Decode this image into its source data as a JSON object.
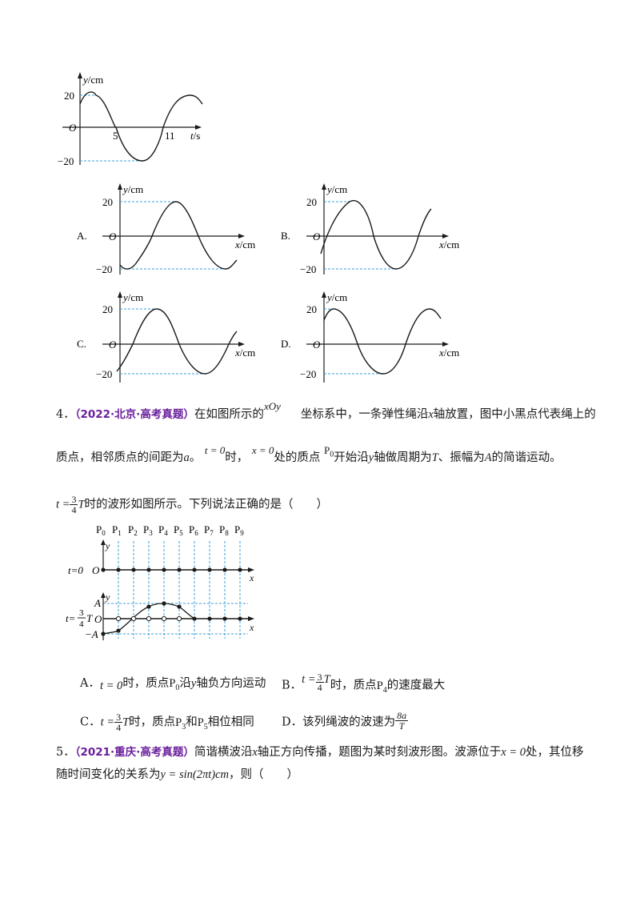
{
  "top_graph": {
    "y_label": "y/cm",
    "x_label": "t/s",
    "origin": "O",
    "y_top": "20",
    "y_bottom": "−20",
    "tick_5": "5",
    "tick_11": "11"
  },
  "options_graphs": [
    {
      "letter": "A.",
      "y_label": "y/cm",
      "x_label": "x/cm",
      "origin": "O",
      "y_top": "20",
      "y_bottom": "−20"
    },
    {
      "letter": "B.",
      "y_label": "y/cm",
      "x_label": "x/cm",
      "origin": "O",
      "y_top": "20",
      "y_bottom": "−20"
    },
    {
      "letter": "C.",
      "y_label": "y/cm",
      "x_label": "x/cm",
      "origin": "O",
      "y_top": "20",
      "y_bottom": "−20"
    },
    {
      "letter": "D.",
      "y_label": "y/cm",
      "x_label": "x/cm",
      "origin": "O",
      "y_top": "20",
      "y_bottom": "−20"
    }
  ],
  "q4": {
    "num": "4．",
    "tag": "（2022·北京·高考真题）",
    "t1": "在如图所示的",
    "xOy": "xOy",
    "t2": "坐标系中，一条弹性绳沿",
    "x": "x",
    "t3": "轴放置，图中小黑点代表绳上的",
    "l2_a": "质点，相邻质点的间距为",
    "a": "a",
    "l2_b": "。",
    "t0": "t = 0",
    "l2_c": "时，",
    "x0": "x = 0",
    "l2_d": "处的质点",
    "P0": "P",
    "P0sub": "0",
    "l2_e": "开始沿",
    "y": "y",
    "l2_f": "轴做周期为",
    "T": "T",
    "l2_g": "、振幅为",
    "A": "A",
    "l2_h": "的简谐运动。",
    "l3_t": "t =",
    "frac_num": "3",
    "frac_den": "4",
    "l3_T": "T",
    "l3_rest": "时的波形如图所示。下列说法正确的是（　　）"
  },
  "wave_fig": {
    "points": [
      "P",
      "P",
      "P",
      "P",
      "P",
      "P",
      "P",
      "P",
      "P",
      "P"
    ],
    "subs": [
      "0",
      "1",
      "2",
      "3",
      "4",
      "5",
      "6",
      "7",
      "8",
      "9"
    ],
    "y": "y",
    "x": "x",
    "O": "O",
    "row1_label": "t=0",
    "row2_t": "t=",
    "row2_num": "3",
    "row2_den": "4",
    "row2_T": "T",
    "A": "A",
    "negA": "−A"
  },
  "q4_options": {
    "A_letter": "A．",
    "A_t": "t = 0",
    "A_1": "时，质点",
    "A_P": "P",
    "A_Psub": "0",
    "A_2": "沿",
    "A_y": "y",
    "A_3": "轴负方向运动",
    "B_letter": "B．",
    "B_t": "t =",
    "B_num": "3",
    "B_den": "4",
    "B_T": "T",
    "B_1": "时，质点",
    "B_P": "P",
    "B_Psub": "4",
    "B_2": "的速度最大",
    "C_letter": "C．",
    "C_t": "t =",
    "C_num": "3",
    "C_den": "4",
    "C_T": "T",
    "C_1": "时，质点",
    "C_P": "P",
    "C_Psub": "3",
    "C_2": "和",
    "C_P2": "P",
    "C_P2sub": "5",
    "C_3": "相位相同",
    "D_letter": "D．",
    "D_1": "该列绳波的波速为",
    "D_num": "8a",
    "D_den": "T"
  },
  "q5": {
    "num": "5．",
    "tag": "（2021·重庆·高考真题）",
    "t1": "简谐横波沿",
    "x": "x",
    "t2": "轴正方向传播，题图为某时刻波形图。波源位于",
    "x0": "x = 0",
    "t3": "处，其位移",
    "l2_a": "随时间变化的关系为",
    "formula": "y = sin(2πt)cm",
    "l2_b": "，则（　　）"
  }
}
